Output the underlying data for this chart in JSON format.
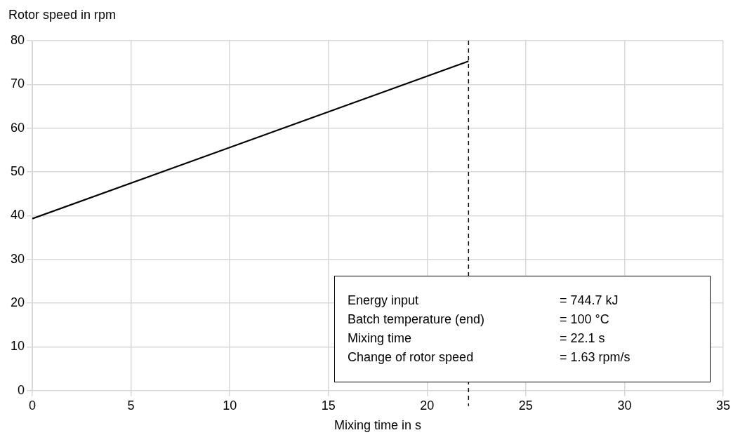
{
  "chart_data": {
    "type": "line",
    "xlabel": "Mixing time in s",
    "ylabel": "Rotor speed in rpm",
    "x": [
      0,
      22.1
    ],
    "series": [
      {
        "color": "#000000",
        "values": [
          39.3,
          75.3
        ]
      }
    ],
    "xlim": [
      0,
      35
    ],
    "xticks": [
      0,
      5,
      10,
      15,
      20,
      25,
      30,
      35
    ],
    "ylim": [
      0,
      80
    ],
    "yticks": [
      0,
      10,
      20,
      30,
      40,
      50,
      60,
      70,
      80
    ],
    "grid": true,
    "legend": false,
    "marker": "none",
    "line_style": "solid",
    "ref_lines": [
      {
        "axis": "x",
        "value": 22.1,
        "color": "#000000",
        "line_style": "dashed"
      }
    ],
    "annotations": [
      "Energy input = 744.7 kJ",
      "Batch temperature (end) = 100 °C",
      "Mixing time = 22.1 s",
      "Change of rotor speed = 1.63 rpm/s"
    ]
  }
}
